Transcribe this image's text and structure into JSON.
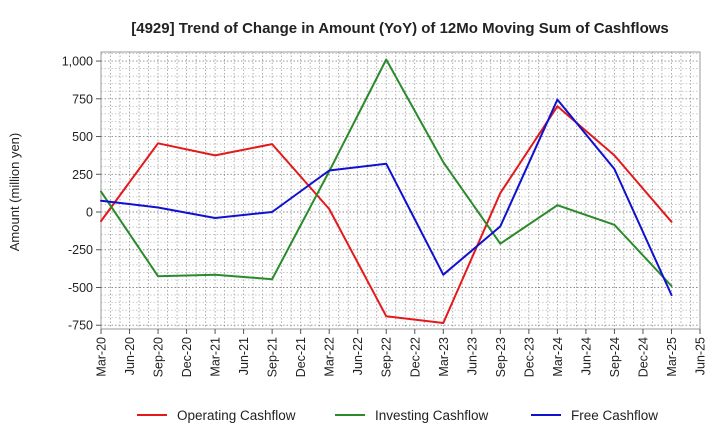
{
  "chart_data": {
    "type": "line",
    "title": "[4929]  Trend of Change in Amount (YoY) of 12Mo Moving Sum of Cashflows",
    "xlabel": "",
    "ylabel": "Amount (million yen)",
    "categories": [
      "Mar-20",
      "Jun-20",
      "Sep-20",
      "Dec-20",
      "Mar-21",
      "Jun-21",
      "Sep-21",
      "Dec-21",
      "Mar-22",
      "Jun-22",
      "Sep-22",
      "Dec-22",
      "Mar-23",
      "Jun-23",
      "Sep-23",
      "Dec-23",
      "Mar-24",
      "Jun-24",
      "Sep-24",
      "Dec-24",
      "Mar-25",
      "Jun-25"
    ],
    "yticks": [
      -750,
      -500,
      -250,
      0,
      250,
      500,
      750,
      1000
    ],
    "ytick_labels": [
      "-750",
      "-500",
      "-250",
      "0",
      "250",
      "500",
      "750",
      "1,000"
    ],
    "ylim": [
      -775,
      1060
    ],
    "grid": true,
    "legend_position": "bottom",
    "series": [
      {
        "name": "Operating Cashflow",
        "color": "#e31a1c",
        "values": [
          -60,
          null,
          455,
          null,
          375,
          null,
          450,
          null,
          20,
          null,
          -690,
          null,
          -735,
          null,
          125,
          null,
          700,
          null,
          375,
          null,
          -65,
          null
        ]
      },
      {
        "name": "Investing Cashflow",
        "color": "#2b8a2b",
        "values": [
          135,
          null,
          -425,
          null,
          -415,
          null,
          -445,
          null,
          270,
          null,
          1010,
          null,
          330,
          null,
          -210,
          null,
          45,
          null,
          -85,
          null,
          -490,
          null
        ]
      },
      {
        "name": "Free Cashflow",
        "color": "#1010d0",
        "values": [
          75,
          null,
          30,
          null,
          -40,
          null,
          0,
          null,
          275,
          null,
          320,
          null,
          -415,
          null,
          -95,
          null,
          745,
          null,
          285,
          null,
          -550,
          null
        ]
      }
    ]
  }
}
